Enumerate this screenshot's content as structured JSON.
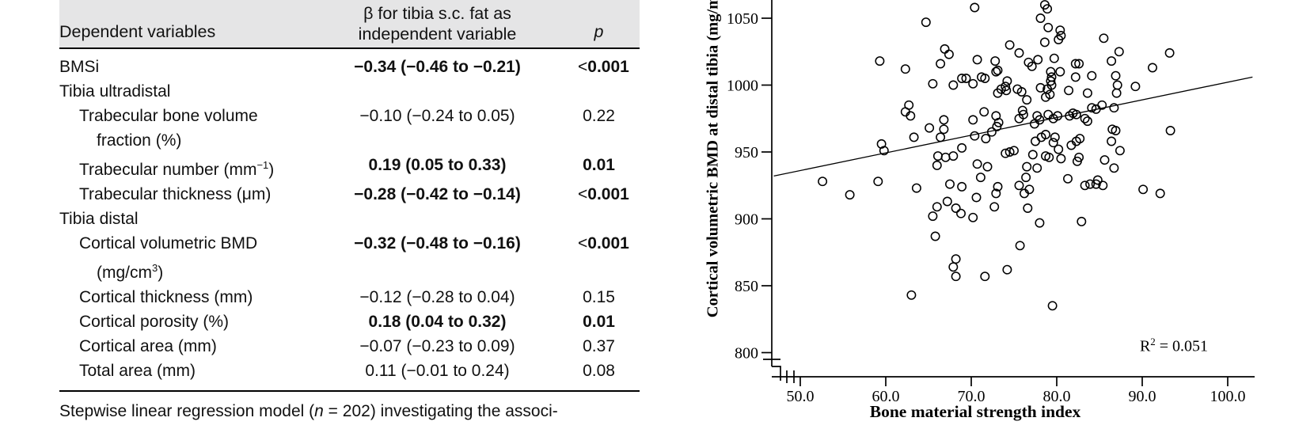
{
  "table": {
    "header": {
      "col1": "Dependent variables",
      "col2_line1": "β for tibia s.c. fat as",
      "col2_line2": "independent variable",
      "col3": "p"
    },
    "rows": [
      {
        "label": "BMSi",
        "indent": 0,
        "value": "−0.34 (−0.46 to −0.21)",
        "p": "<0.001",
        "bold": true
      },
      {
        "label": "Tibia ultradistal",
        "indent": 0,
        "section": true
      },
      {
        "label": "Trabecular bone volume",
        "line2": "fraction (%)",
        "indent": 1,
        "value": "−0.10 (−0.24 to 0.05)",
        "p": "0.22",
        "bold": false
      },
      {
        "label": "Trabecular number (mm",
        "sup": "−1",
        "label_end": ")",
        "indent": 1,
        "value": "0.19 (0.05 to 0.33)",
        "p": "0.01",
        "bold": true
      },
      {
        "label": "Trabecular thickness (μm)",
        "indent": 1,
        "value": "−0.28 (−0.42 to −0.14)",
        "p": "<0.001",
        "bold": true
      },
      {
        "label": "Tibia distal",
        "indent": 0,
        "section": true
      },
      {
        "label": "Cortical volumetric BMD",
        "line2": "(mg/cm",
        "line2_sup": "3",
        "line2_end": ")",
        "indent": 1,
        "value": "−0.32 (−0.48 to −0.16)",
        "p": "<0.001",
        "bold": true
      },
      {
        "label": "Cortical thickness (mm)",
        "indent": 1,
        "value": "−0.12 (−0.28 to 0.04)",
        "p": "0.15",
        "bold": false
      },
      {
        "label": "Cortical porosity (%)",
        "indent": 1,
        "value": "0.18 (0.04 to 0.32)",
        "p": "0.01",
        "bold": true
      },
      {
        "label": "Cortical area (mm)",
        "indent": 1,
        "value": "−0.07 (−0.23 to 0.09)",
        "p": "0.37",
        "bold": false
      },
      {
        "label": "Total area (mm)",
        "indent": 1,
        "value": "0.11 (−0.01 to 0.24)",
        "p": "0.08",
        "bold": false
      }
    ],
    "footnote": {
      "pre": "Stepwise linear regression model (",
      "italic": "n",
      "post": " = 202) investigating the associ-"
    }
  },
  "chart_data": {
    "type": "scatter",
    "title": "",
    "xlabel": "Bone material strength index",
    "ylabel": "Cortical volumetric BMD at distal tibia (mg/m",
    "xlim": [
      46.5,
      103.5
    ],
    "ylim": [
      793,
      1063
    ],
    "xticks": [
      50,
      60,
      70,
      80,
      90,
      100
    ],
    "xtick_labels": [
      "50.0",
      "60.0",
      "70.0",
      "80.0",
      "90.0",
      "100.0"
    ],
    "yticks": [
      800,
      850,
      900,
      950,
      1000,
      1050
    ],
    "ytick_labels": [
      "800",
      "850",
      "900",
      "950",
      "1000",
      "1050"
    ],
    "axis_break": true,
    "grid": false,
    "r2": {
      "base": "R",
      "sup": "2",
      "rest": " = 0.051"
    },
    "regression_line": {
      "x1": 46.9,
      "y1": 932,
      "x2": 102.9,
      "y2": 1006
    },
    "points": [
      [
        64.7,
        1047
      ],
      [
        70.4,
        1058
      ],
      [
        78.6,
        1060
      ],
      [
        78.9,
        1057
      ],
      [
        78.1,
        1050
      ],
      [
        79.0,
        1043
      ],
      [
        80.4,
        1041
      ],
      [
        80.5,
        1037
      ],
      [
        80.2,
        1034
      ],
      [
        78.6,
        1032
      ],
      [
        74.5,
        1030
      ],
      [
        75.6,
        1024
      ],
      [
        85.5,
        1035
      ],
      [
        87.3,
        1025
      ],
      [
        93.2,
        1024
      ],
      [
        91.2,
        1013
      ],
      [
        66.9,
        1027
      ],
      [
        67.4,
        1023
      ],
      [
        59.3,
        1018
      ],
      [
        62.3,
        1012
      ],
      [
        66.4,
        1016
      ],
      [
        86.4,
        1018
      ],
      [
        70.7,
        1019
      ],
      [
        72.8,
        1018
      ],
      [
        73.1,
        1011
      ],
      [
        72.9,
        1010
      ],
      [
        68.9,
        1005
      ],
      [
        69.4,
        1005
      ],
      [
        71.2,
        1006
      ],
      [
        71.6,
        1005
      ],
      [
        70.2,
        1001
      ],
      [
        74.2,
        1003
      ],
      [
        76.7,
        1017
      ],
      [
        77.1,
        1014
      ],
      [
        77.8,
        1019
      ],
      [
        79.7,
        1020
      ],
      [
        79.3,
        1010
      ],
      [
        79.4,
        1006
      ],
      [
        79.3,
        1003
      ],
      [
        79.4,
        1000
      ],
      [
        80.4,
        1010
      ],
      [
        82.2,
        1016
      ],
      [
        82.6,
        1016
      ],
      [
        82.2,
        1006
      ],
      [
        84.1,
        1007
      ],
      [
        86.9,
        1007
      ],
      [
        87.1,
        1000
      ],
      [
        89.2,
        999
      ],
      [
        65.5,
        1001
      ],
      [
        67.9,
        1000
      ],
      [
        87.0,
        994
      ],
      [
        62.7,
        985
      ],
      [
        62.3,
        980
      ],
      [
        62.9,
        977
      ],
      [
        65.1,
        968
      ],
      [
        66.8,
        974
      ],
      [
        66.8,
        967
      ],
      [
        66.4,
        961
      ],
      [
        63.3,
        961
      ],
      [
        59.5,
        956
      ],
      [
        59.8,
        951
      ],
      [
        73.5,
        997
      ],
      [
        74.0,
        999
      ],
      [
        74.1,
        996
      ],
      [
        73.1,
        994
      ],
      [
        75.4,
        997
      ],
      [
        75.9,
        995
      ],
      [
        76.5,
        989
      ],
      [
        78.1,
        998
      ],
      [
        78.9,
        997
      ],
      [
        78.7,
        991
      ],
      [
        79.2,
        993
      ],
      [
        81.4,
        996
      ],
      [
        83.6,
        994
      ],
      [
        71.5,
        980
      ],
      [
        70.2,
        974
      ],
      [
        76.0,
        981
      ],
      [
        75.6,
        975
      ],
      [
        76.1,
        978
      ],
      [
        72.9,
        977
      ],
      [
        73.2,
        972
      ],
      [
        73.0,
        969
      ],
      [
        77.7,
        977
      ],
      [
        78.0,
        974
      ],
      [
        77.4,
        971
      ],
      [
        79.6,
        975
      ],
      [
        80.1,
        977
      ],
      [
        79.0,
        978
      ],
      [
        81.9,
        979
      ],
      [
        82.3,
        978
      ],
      [
        81.5,
        977
      ],
      [
        83.3,
        975
      ],
      [
        84.1,
        983
      ],
      [
        84.6,
        982
      ],
      [
        85.3,
        985
      ],
      [
        86.7,
        983
      ],
      [
        83.6,
        973
      ],
      [
        86.5,
        967
      ],
      [
        86.9,
        966
      ],
      [
        93.3,
        966
      ],
      [
        70.4,
        962
      ],
      [
        71.7,
        960
      ],
      [
        72.4,
        965
      ],
      [
        78.2,
        961
      ],
      [
        78.7,
        963
      ],
      [
        77.5,
        958
      ],
      [
        79.8,
        961
      ],
      [
        79.6,
        957
      ],
      [
        82.3,
        958
      ],
      [
        82.7,
        960
      ],
      [
        86.4,
        958
      ],
      [
        87.4,
        951
      ],
      [
        68.9,
        953
      ],
      [
        74.0,
        949
      ],
      [
        74.5,
        950
      ],
      [
        75.0,
        951
      ],
      [
        77.2,
        948
      ],
      [
        78.7,
        947
      ],
      [
        79.1,
        946
      ],
      [
        80.2,
        952
      ],
      [
        80.5,
        945
      ],
      [
        81.7,
        955
      ],
      [
        82.6,
        946
      ],
      [
        82.4,
        943
      ],
      [
        85.6,
        944
      ],
      [
        86.7,
        938
      ],
      [
        66.1,
        947
      ],
      [
        67.0,
        946
      ],
      [
        67.9,
        947
      ],
      [
        66.0,
        940
      ],
      [
        70.7,
        941
      ],
      [
        71.9,
        939
      ],
      [
        76.5,
        939
      ],
      [
        77.7,
        938
      ],
      [
        52.6,
        928
      ],
      [
        59.1,
        928
      ],
      [
        81.3,
        930
      ],
      [
        84.8,
        929
      ],
      [
        76.4,
        931
      ],
      [
        71.1,
        931
      ],
      [
        55.8,
        918
      ],
      [
        63.6,
        923
      ],
      [
        67.5,
        926
      ],
      [
        66.0,
        909
      ],
      [
        67.2,
        913
      ],
      [
        68.2,
        908
      ],
      [
        65.5,
        902
      ],
      [
        68.9,
        924
      ],
      [
        70.6,
        916
      ],
      [
        68.8,
        904
      ],
      [
        70.2,
        901
      ],
      [
        73.1,
        924
      ],
      [
        72.9,
        919
      ],
      [
        72.7,
        909
      ],
      [
        75.6,
        925
      ],
      [
        76.2,
        919
      ],
      [
        76.8,
        922
      ],
      [
        76.6,
        908
      ],
      [
        78.0,
        897
      ],
      [
        83.3,
        925
      ],
      [
        83.9,
        926
      ],
      [
        84.6,
        926
      ],
      [
        85.4,
        925
      ],
      [
        90.1,
        922
      ],
      [
        92.1,
        919
      ],
      [
        65.8,
        887
      ],
      [
        75.7,
        880
      ],
      [
        68.2,
        870
      ],
      [
        74.2,
        862
      ],
      [
        71.6,
        857
      ],
      [
        67.9,
        864
      ],
      [
        68.2,
        857
      ],
      [
        63.0,
        843
      ],
      [
        79.5,
        835
      ],
      [
        82.9,
        898
      ]
    ]
  }
}
